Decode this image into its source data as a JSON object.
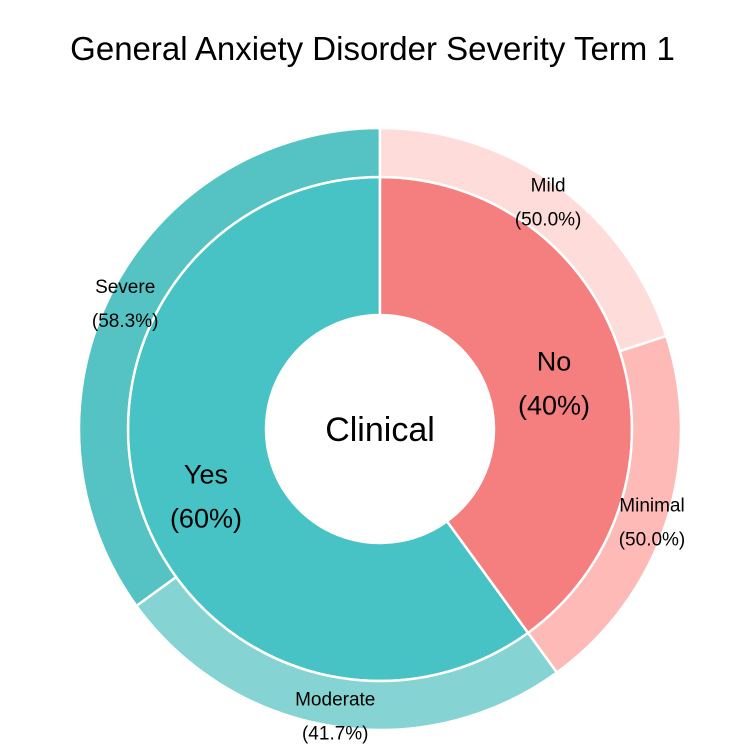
{
  "chart_data": {
    "type": "pie",
    "title": "General Anxiety Disorder Severity Term 1",
    "center_label": "Clinical",
    "inner": [
      {
        "label": "Yes",
        "percent_text": "(60%)",
        "value": 60,
        "color": "#47C3C6"
      },
      {
        "label": "No",
        "percent_text": "(40%)",
        "value": 40,
        "color": "#F57F7E"
      }
    ],
    "outer": [
      {
        "parent": "Yes",
        "label": "Severe",
        "percent_text": "(58.3%)",
        "value": 35,
        "color": "#55C2C4"
      },
      {
        "parent": "Yes",
        "label": "Moderate",
        "percent_text": "(41.7%)",
        "value": 25,
        "color": "#86D3D3"
      },
      {
        "parent": "No",
        "label": "Minimal",
        "percent_text": "(50.0%)",
        "value": 20,
        "color": "#FDBAB6"
      },
      {
        "parent": "No",
        "label": "Mild",
        "percent_text": "(50.0%)",
        "value": 20,
        "color": "#FEDCDA"
      }
    ]
  }
}
